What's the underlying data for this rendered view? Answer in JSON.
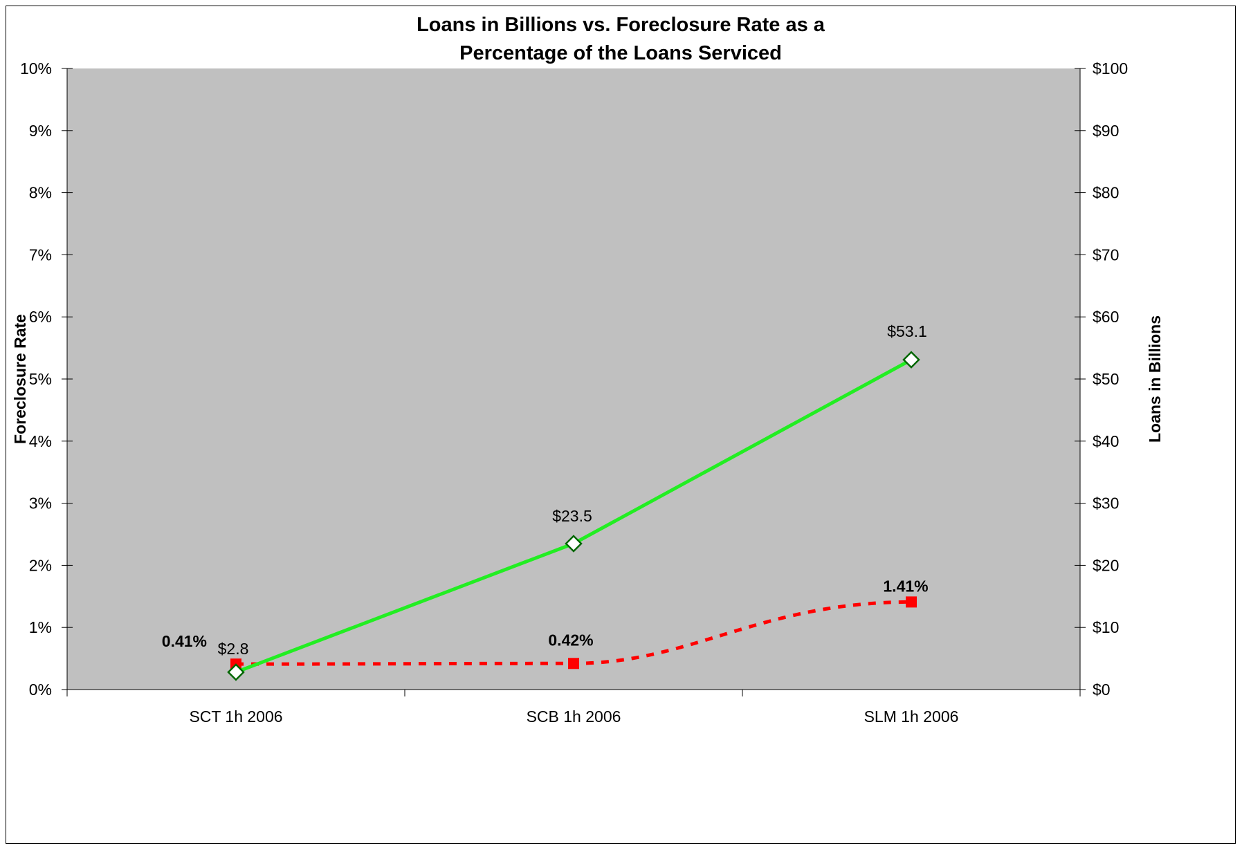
{
  "chart_data": {
    "type": "line",
    "title": [
      "Loans in Billions vs. Foreclosure Rate as a",
      "Percentage of the Loans  Serviced"
    ],
    "categories": [
      "SCT 1h 2006",
      "SCB 1h 2006",
      "SLM 1h 2006"
    ],
    "y_left": {
      "label": "Foreclosure Rate",
      "range": [
        0,
        10
      ],
      "ticks": [
        "0%",
        "1%",
        "2%",
        "3%",
        "4%",
        "5%",
        "6%",
        "7%",
        "8%",
        "9%",
        "10%"
      ]
    },
    "y_right": {
      "label": "Loans in Billions",
      "range": [
        0,
        100
      ],
      "ticks": [
        "$0",
        "$10",
        "$20",
        "$30",
        "$40",
        "$50",
        "$60",
        "$70",
        "$80",
        "$90",
        "$100"
      ]
    },
    "series": [
      {
        "axis": "left",
        "style": "dashed",
        "marker": "square",
        "color": "#ff0000",
        "values": [
          0.41,
          0.42,
          1.41
        ],
        "labels": [
          "0.41%",
          "0.42%",
          "1.41%"
        ]
      },
      {
        "axis": "right",
        "style": "solid",
        "marker": "diamond",
        "color": "#22ee22",
        "marker_edge": "#006600",
        "values": [
          2.8,
          23.5,
          53.1
        ],
        "labels": [
          "$2.8",
          "$23.5",
          "$53.1"
        ]
      }
    ],
    "plot_background": "#c0c0c0",
    "grid": false,
    "legend": "none"
  }
}
